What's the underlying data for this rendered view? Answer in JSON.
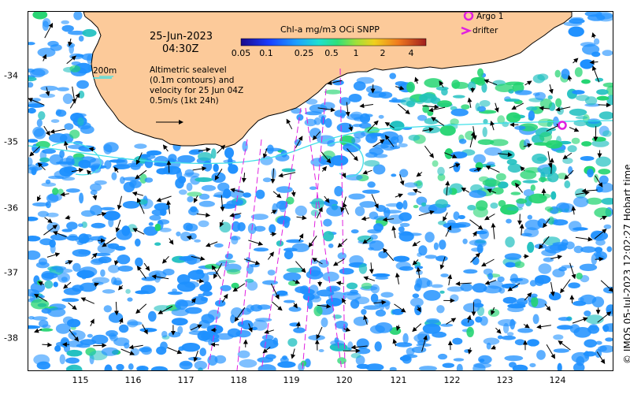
{
  "map": {
    "date": "25-Jun-2023",
    "time": "04:30Z",
    "colorbar": {
      "title": "Chl-a mg/m3 OCi SNPP",
      "ticks": [
        "0.05",
        "0.1",
        "0.25",
        "0.5",
        "1",
        "2",
        "4"
      ],
      "colors": [
        "#1a0a8a",
        "#1a3cff",
        "#1e8cff",
        "#1ecbf0",
        "#1ee0b4",
        "#2ee07a",
        "#6fe03a",
        "#c8e01e",
        "#f0c81e",
        "#f08c1e",
        "#e0501e",
        "#a01e1e"
      ]
    },
    "altimetry_note": "Altimetric sealevel (0.1m contours) and velocity for 25 Jun 04Z 0.5m/s (1kt 24h)",
    "scale_label": "200m",
    "legend": {
      "argo": "Argo 1",
      "drifter": "drifter"
    },
    "longitude_ticks": [
      "115",
      "116",
      "117",
      "118",
      "119",
      "120",
      "121",
      "122",
      "123",
      "124"
    ],
    "latitude_ticks": [
      "-34",
      "-35",
      "-36",
      "-37",
      "-38"
    ],
    "credit": "© IMOS 05-Jul-2023 12:02:27 Hobart time",
    "colors": {
      "land": "#fcca9a",
      "contour": "#40e0e8",
      "drifter_track": "#e020e0",
      "argo": "#e020e0",
      "low_chl": "#1e90ff",
      "mid_chl": "#20c0c0",
      "green_chl": "#22d470"
    }
  }
}
